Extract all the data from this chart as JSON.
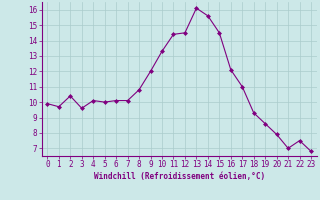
{
  "x": [
    0,
    1,
    2,
    3,
    4,
    5,
    6,
    7,
    8,
    9,
    10,
    11,
    12,
    13,
    14,
    15,
    16,
    17,
    18,
    19,
    20,
    21,
    22,
    23
  ],
  "y": [
    9.9,
    9.7,
    10.4,
    9.6,
    10.1,
    10.0,
    10.1,
    10.1,
    10.8,
    12.0,
    13.3,
    14.4,
    14.5,
    16.1,
    15.6,
    14.5,
    12.1,
    11.0,
    9.3,
    8.6,
    7.9,
    7.0,
    7.5,
    6.8
  ],
  "line_color": "#800080",
  "marker": "D",
  "marker_size": 2.0,
  "bg_color": "#cce8e8",
  "grid_color": "#aacccc",
  "xlabel": "Windchill (Refroidissement éolien,°C)",
  "xlabel_color": "#800080",
  "tick_color": "#800080",
  "axis_color": "#800080",
  "ylim": [
    6.5,
    16.5
  ],
  "xlim": [
    -0.5,
    23.5
  ],
  "yticks": [
    7,
    8,
    9,
    10,
    11,
    12,
    13,
    14,
    15,
    16
  ],
  "xticks": [
    0,
    1,
    2,
    3,
    4,
    5,
    6,
    7,
    8,
    9,
    10,
    11,
    12,
    13,
    14,
    15,
    16,
    17,
    18,
    19,
    20,
    21,
    22,
    23
  ],
  "tick_fontsize": 5.5,
  "xlabel_fontsize": 5.5
}
